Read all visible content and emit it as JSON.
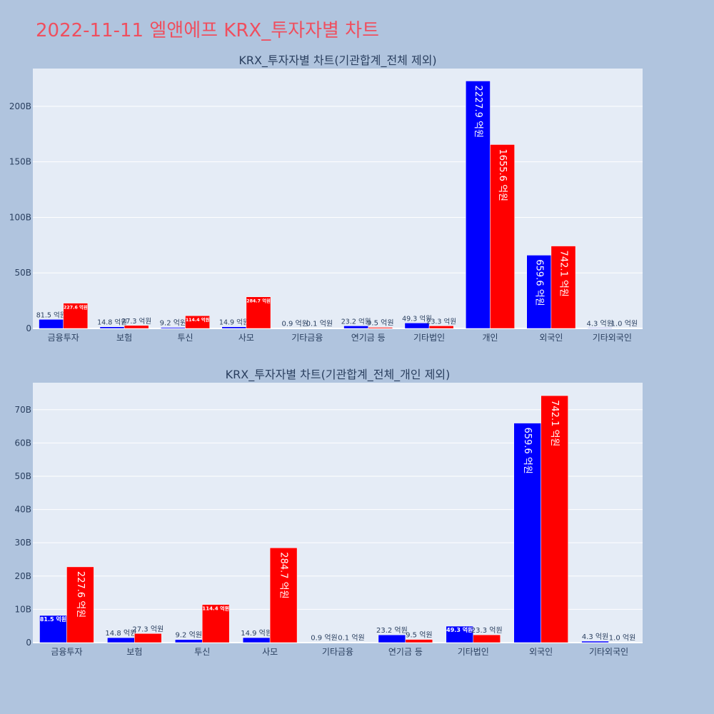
{
  "page": {
    "title": "2022-11-11 엘앤에프 KRX_투자자별 차트"
  },
  "colors": {
    "background": "#b0c4de",
    "plot_bg": "#e5ecf6",
    "series_a": "#0000ff",
    "series_b": "#ff0000",
    "title": "#ef4f5f"
  },
  "chart_data": [
    {
      "type": "bar",
      "title": "KRX_투자자별 차트(기관합계_전체 제외)",
      "categories": [
        "금융투자",
        "보험",
        "투신",
        "사모",
        "기타금융",
        "연기금 등",
        "기타법인",
        "개인",
        "외국인",
        "기타외국인"
      ],
      "y_tick_labels": [
        "0",
        "50B",
        "100B",
        "150B",
        "200B"
      ],
      "y_ticks": [
        0,
        50,
        100,
        150,
        200
      ],
      "ylim": [
        0,
        234
      ],
      "grid": true,
      "series": [
        {
          "color": "#0000ff",
          "values": [
            8.15,
            1.48,
            0.92,
            1.49,
            0.09,
            2.32,
            4.93,
            222.79,
            65.96,
            0.43
          ],
          "labels": [
            "81.5 억원",
            "14.8 억원",
            "9.2 억원",
            "14.9 억원",
            "0.9 억원",
            "23.2 억원",
            "49.3 억원",
            "2227.9 억원",
            "659.6 억원",
            "4.3 억원"
          ]
        },
        {
          "color": "#ff0000",
          "values": [
            22.76,
            2.73,
            11.44,
            28.47,
            0.01,
            0.95,
            2.33,
            165.56,
            74.21,
            0.1
          ],
          "labels": [
            "227.6 억원",
            "27.3 억원",
            "114.4 억원",
            "284.7 억원",
            "0.1 억원",
            "9.5 억원",
            "23.3 억원",
            "1655.6 억원",
            "742.1 억원",
            "1.0 억원"
          ]
        }
      ]
    },
    {
      "type": "bar",
      "title": "KRX_투자자별 차트(기관합계_전체_개인 제외)",
      "categories": [
        "금융투자",
        "보험",
        "투신",
        "사모",
        "기타금융",
        "연기금 등",
        "기타법인",
        "외국인",
        "기타외국인"
      ],
      "y_tick_labels": [
        "0",
        "10B",
        "20B",
        "30B",
        "40B",
        "50B",
        "60B",
        "70B"
      ],
      "y_ticks": [
        0,
        10,
        20,
        30,
        40,
        50,
        60,
        70
      ],
      "ylim": [
        0,
        78.1
      ],
      "grid": true,
      "series": [
        {
          "color": "#0000ff",
          "values": [
            8.15,
            1.48,
            0.92,
            1.49,
            0.09,
            2.32,
            4.93,
            65.96,
            0.43
          ],
          "labels": [
            "81.5 억원",
            "14.8 억원",
            "9.2 억원",
            "14.9 억원",
            "0.9 억원",
            "23.2 억원",
            "49.3 억원",
            "659.6 억원",
            "4.3 억원"
          ]
        },
        {
          "color": "#ff0000",
          "values": [
            22.76,
            2.73,
            11.44,
            28.47,
            0.01,
            0.95,
            2.33,
            74.21,
            0.1
          ],
          "labels": [
            "227.6 억원",
            "27.3 억원",
            "114.4 억원",
            "284.7 억원",
            "0.1 억원",
            "9.5 억원",
            "23.3 억원",
            "742.1 억원",
            "1.0 억원"
          ]
        }
      ]
    }
  ]
}
